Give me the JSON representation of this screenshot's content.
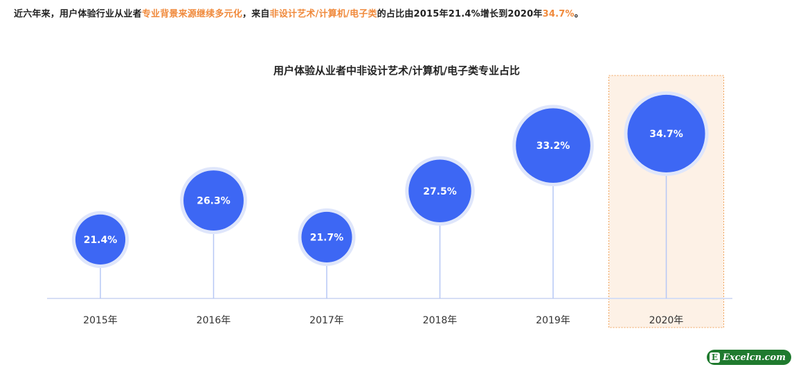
{
  "headline": {
    "part1": "近六年来，用户体验行业从业者",
    "highlight1": "专业背景来源继续多元化",
    "part2": "，来自",
    "highlight2": "非设计艺术/计算机/电子类",
    "part3": "的占比由2015年21.4%增长到2020年",
    "highlight3": "34.7%",
    "part4": "。"
  },
  "colors": {
    "bubble": "#3d67f4",
    "halo": "#dfe6fb",
    "stem": "#b6c7f5",
    "axis": "#d6def5",
    "highlight_fill": "#fdf1e6",
    "highlight_border": "#f0a25a",
    "accent_text": "#f08a3c"
  },
  "chart_data": {
    "type": "scatter",
    "title": "用户体验从业者中非设计艺术/计算机/电子类专业占比",
    "categories": [
      "2015年",
      "2016年",
      "2017年",
      "2018年",
      "2019年",
      "2020年"
    ],
    "values": [
      21.4,
      26.3,
      21.7,
      27.5,
      33.2,
      34.7
    ],
    "labels": [
      "21.4%",
      "26.3%",
      "21.7%",
      "27.5%",
      "33.2%",
      "34.7%"
    ],
    "unit": "%",
    "highlighted_category": "2020年",
    "grid": false,
    "legend": "none"
  },
  "watermark": {
    "badge": "E",
    "text": "Excelcn.com"
  }
}
